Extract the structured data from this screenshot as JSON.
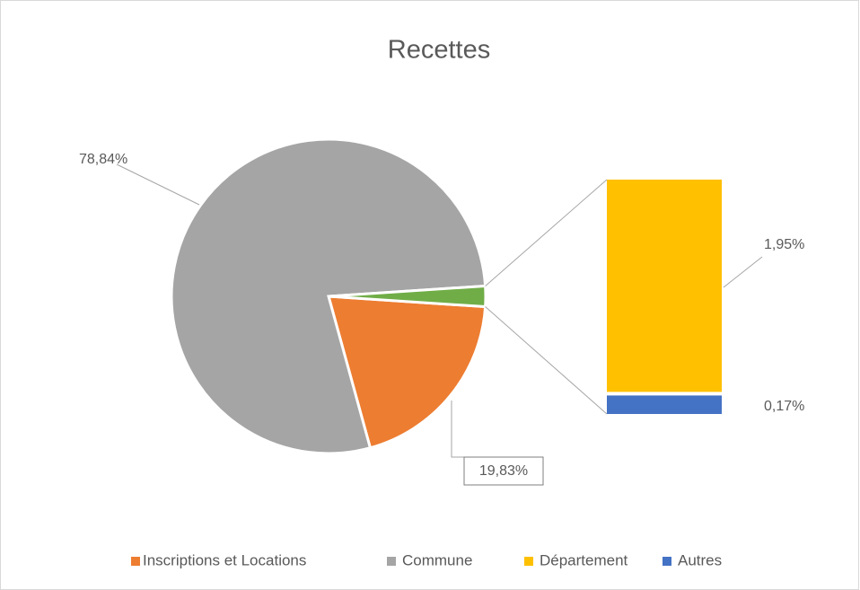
{
  "chart_data": {
    "type": "pie",
    "title": "Recettes",
    "categories": [
      "Inscriptions et Locations",
      "Commune",
      "Département",
      "Autres"
    ],
    "values": [
      19.83,
      78.84,
      1.95,
      0.17
    ],
    "value_labels": [
      "19,83%",
      "78,84%",
      "1,95%",
      "0,17%"
    ],
    "colors": [
      "#ed7d31",
      "#a5a5a5",
      "#ffc000",
      "#4472c4"
    ],
    "other_color": "#70ad47",
    "legend": "bottom"
  }
}
